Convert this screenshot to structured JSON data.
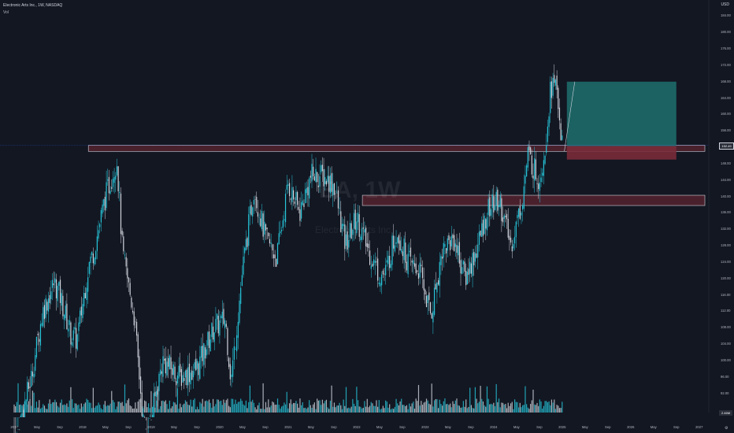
{
  "header": {
    "symbol_line": "Electronic Arts Inc., 1W, NASDAQ",
    "volume_label": "Vol",
    "currency": "USD"
  },
  "watermark": {
    "ticker": "EA, 1W",
    "name": "Electronic Arts Inc."
  },
  "price_axis": {
    "ticks": [
      "184.00",
      "180.00",
      "176.00",
      "172.00",
      "168.00",
      "164.00",
      "160.00",
      "156.00",
      "152.00",
      "148.00",
      "144.00",
      "140.00",
      "136.00",
      "132.00",
      "128.00",
      "124.00",
      "120.00",
      "116.00",
      "112.00",
      "108.00",
      "104.00",
      "100.00",
      "96.00",
      "92.00"
    ],
    "last_price": "152.49",
    "volume_badge": "2.46M"
  },
  "time_axis": {
    "ticks": [
      "2017",
      "May",
      "Sep",
      "2018",
      "May",
      "Sep",
      "2019",
      "May",
      "Sep",
      "2020",
      "May",
      "Sep",
      "2021",
      "May",
      "Sep",
      "2022",
      "May",
      "Sep",
      "2023",
      "May",
      "Sep",
      "2024",
      "May",
      "Sep",
      "2025",
      "May",
      "Sep",
      "2026",
      "May",
      "Sep",
      "2027"
    ]
  },
  "chart_data": {
    "type": "candlestick",
    "symbol": "Electronic Arts Inc.",
    "interval": "1W",
    "exchange": "NASDAQ",
    "ylim": [
      90,
      186
    ],
    "x_range": [
      "2017-01",
      "2027-02"
    ],
    "close_path": [
      {
        "t": "2017-01",
        "v": 79
      },
      {
        "t": "2017-04",
        "v": 96
      },
      {
        "t": "2017-06",
        "v": 112
      },
      {
        "t": "2017-08",
        "v": 119
      },
      {
        "t": "2017-09",
        "v": 116
      },
      {
        "t": "2017-11",
        "v": 106
      },
      {
        "t": "2017-12",
        "v": 105
      },
      {
        "t": "2018-02",
        "v": 123
      },
      {
        "t": "2018-03",
        "v": 127
      },
      {
        "t": "2018-05",
        "v": 140
      },
      {
        "t": "2018-07",
        "v": 149
      },
      {
        "t": "2018-08",
        "v": 126
      },
      {
        "t": "2018-10",
        "v": 111
      },
      {
        "t": "2018-12",
        "v": 79
      },
      {
        "t": "2019-03",
        "v": 100
      },
      {
        "t": "2019-06",
        "v": 96
      },
      {
        "t": "2019-09",
        "v": 98
      },
      {
        "t": "2019-12",
        "v": 108
      },
      {
        "t": "2020-02",
        "v": 110
      },
      {
        "t": "2020-03",
        "v": 95
      },
      {
        "t": "2020-05",
        "v": 122
      },
      {
        "t": "2020-07",
        "v": 142
      },
      {
        "t": "2020-09",
        "v": 130
      },
      {
        "t": "2020-11",
        "v": 125
      },
      {
        "t": "2021-01",
        "v": 143
      },
      {
        "t": "2021-03",
        "v": 136
      },
      {
        "t": "2021-05",
        "v": 145
      },
      {
        "t": "2021-07",
        "v": 145
      },
      {
        "t": "2021-09",
        "v": 143
      },
      {
        "t": "2021-11",
        "v": 128
      },
      {
        "t": "2022-01",
        "v": 135
      },
      {
        "t": "2022-03",
        "v": 127
      },
      {
        "t": "2022-05",
        "v": 121
      },
      {
        "t": "2022-06",
        "v": 121
      },
      {
        "t": "2022-08",
        "v": 132
      },
      {
        "t": "2022-10",
        "v": 124
      },
      {
        "t": "2022-12",
        "v": 122
      },
      {
        "t": "2023-02",
        "v": 111
      },
      {
        "t": "2023-04",
        "v": 127
      },
      {
        "t": "2023-06",
        "v": 130
      },
      {
        "t": "2023-08",
        "v": 120
      },
      {
        "t": "2023-10",
        "v": 127
      },
      {
        "t": "2023-12",
        "v": 137
      },
      {
        "t": "2024-02",
        "v": 139
      },
      {
        "t": "2024-04",
        "v": 128
      },
      {
        "t": "2024-06",
        "v": 139
      },
      {
        "t": "2024-07",
        "v": 150
      },
      {
        "t": "2024-09",
        "v": 144
      },
      {
        "t": "2024-10",
        "v": 152
      },
      {
        "t": "2024-11",
        "v": 167
      },
      {
        "t": "2024-12",
        "v": 167
      },
      {
        "t": "2025-01",
        "v": 152.49
      }
    ],
    "zones": [
      {
        "kind": "resistance",
        "price_top": 152.5,
        "price_bottom": 151.0,
        "from": "2018-02",
        "to": "2027-02"
      },
      {
        "kind": "support",
        "price_top": 140.3,
        "price_bottom": 137.8,
        "from": "2022-02",
        "to": "2027-02"
      }
    ],
    "position": {
      "kind": "long",
      "entry": 152.3,
      "target": 168.0,
      "stop": 149.0,
      "from": "2025-01",
      "to": "2026-09"
    },
    "projection": {
      "from": {
        "t": "2024-12",
        "v": 151
      },
      "to": {
        "t": "2025-01",
        "v": 168
      }
    },
    "current_price": 152.49,
    "current_volume": "2.46M"
  },
  "colors": {
    "background": "#131722",
    "up": "#26c6da",
    "down": "#d1d4dc",
    "volume_up": "#26c6da",
    "volume_down": "#d1d4dc",
    "zone_fill": "#5c2631",
    "zone_border": "#d1d4dc",
    "target_fill": "#1e6a6a",
    "stop_fill": "#7a2b38",
    "text": "#b2b5be"
  }
}
